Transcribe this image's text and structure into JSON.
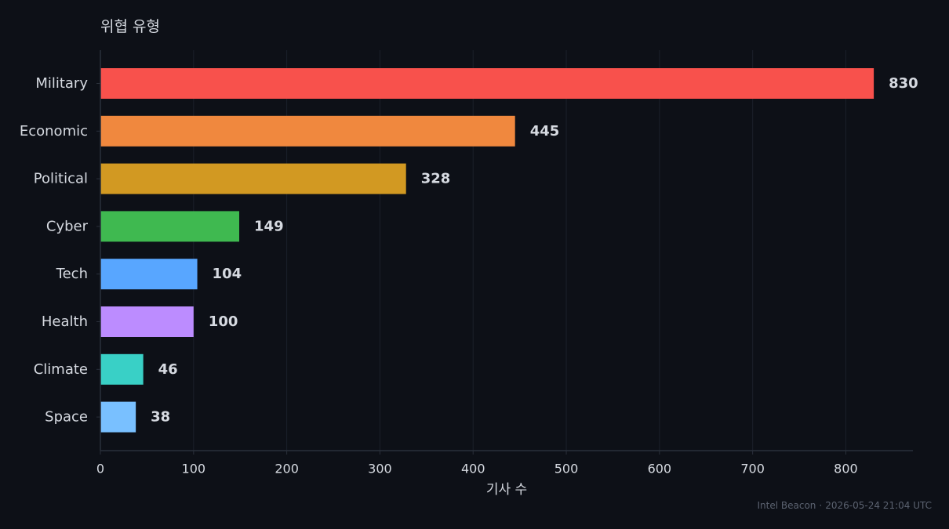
{
  "chart_data": {
    "type": "bar",
    "orientation": "horizontal",
    "title": "위협 유형",
    "xlabel": "기사 수",
    "ylabel": "",
    "xlim": [
      0,
      872
    ],
    "xticks": [
      0,
      100,
      200,
      300,
      400,
      500,
      600,
      700,
      800
    ],
    "grid": true,
    "categories": [
      "Military",
      "Economic",
      "Political",
      "Cyber",
      "Tech",
      "Health",
      "Climate",
      "Space"
    ],
    "values": [
      830,
      445,
      328,
      149,
      104,
      100,
      46,
      38
    ],
    "colors": [
      "#f8514c",
      "#f0883e",
      "#d29922",
      "#3fb950",
      "#58a6ff",
      "#bc8cff",
      "#39d0c6",
      "#79c0ff"
    ]
  },
  "footer": {
    "source": "Intel Beacon",
    "separator": "·",
    "timestamp": "2026-05-24 21:04 UTC"
  },
  "theme": {
    "background": "#0d1017",
    "text": "#d6dae1",
    "grid": "#1b202a",
    "axis": "#2a303b",
    "footer": "#5b6270"
  }
}
